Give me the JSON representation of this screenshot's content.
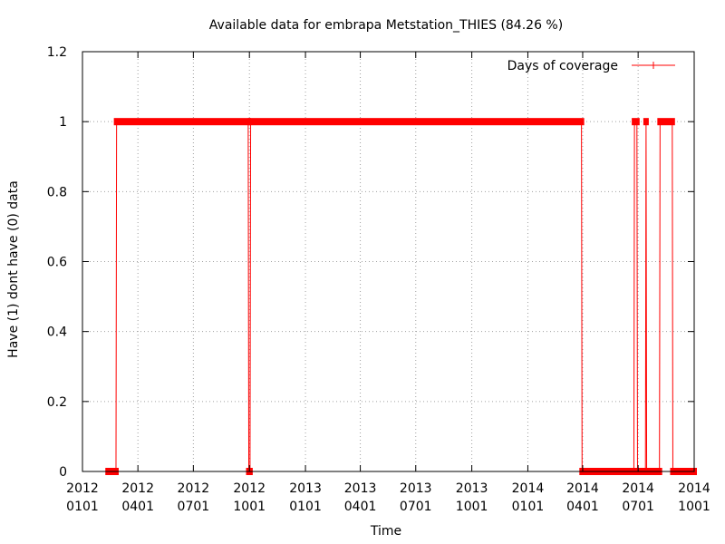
{
  "chart_data": {
    "type": "line",
    "title": "Available data for embrapa Metstation_THIES (84.26 %)",
    "xlabel": "Time",
    "ylabel": "Have (1) dont have (0) data",
    "xlim": [
      "2012-01-01",
      "2014-10-01"
    ],
    "ylim": [
      0,
      1.2
    ],
    "y_ticks": [
      "0",
      "0.2",
      "0.4",
      "0.6",
      "0.8",
      "1",
      "1.2"
    ],
    "y_tick_values": [
      0,
      0.2,
      0.4,
      0.6,
      0.8,
      1.0,
      1.2
    ],
    "x_ticks": [
      {
        "date": "2012-01-01",
        "line1": "2012",
        "line2": "0101"
      },
      {
        "date": "2012-04-01",
        "line1": "2012",
        "line2": "0401"
      },
      {
        "date": "2012-07-01",
        "line1": "2012",
        "line2": "0701"
      },
      {
        "date": "2012-10-01",
        "line1": "2012",
        "line2": "1001"
      },
      {
        "date": "2013-01-01",
        "line1": "2013",
        "line2": "0101"
      },
      {
        "date": "2013-04-01",
        "line1": "2013",
        "line2": "0401"
      },
      {
        "date": "2013-07-01",
        "line1": "2013",
        "line2": "0701"
      },
      {
        "date": "2013-10-01",
        "line1": "2013",
        "line2": "1001"
      },
      {
        "date": "2014-01-01",
        "line1": "2014",
        "line2": "0101"
      },
      {
        "date": "2014-04-01",
        "line1": "2014",
        "line2": "0401"
      },
      {
        "date": "2014-07-01",
        "line1": "2014",
        "line2": "0701"
      },
      {
        "date": "2014-10-01",
        "line1": "2014",
        "line2": "1001"
      }
    ],
    "grid": true,
    "legend_position": "top-right",
    "series": [
      {
        "name": "Days of coverage",
        "color": "#ff0000",
        "marker": "plus",
        "segments": [
          {
            "start": "2012-02-12",
            "end": "2012-02-25",
            "value": 0
          },
          {
            "start": "2012-02-26",
            "end": "2012-09-29",
            "value": 1
          },
          {
            "start": "2012-09-30",
            "end": "2012-10-02",
            "value": 0
          },
          {
            "start": "2012-10-03",
            "end": "2014-03-30",
            "value": 1
          },
          {
            "start": "2014-03-31",
            "end": "2014-06-24",
            "value": 0
          },
          {
            "start": "2014-06-25",
            "end": "2014-06-29",
            "value": 1
          },
          {
            "start": "2014-06-30",
            "end": "2014-07-13",
            "value": 0
          },
          {
            "start": "2014-07-14",
            "end": "2014-07-14",
            "value": 1
          },
          {
            "start": "2014-07-15",
            "end": "2014-08-05",
            "value": 0
          },
          {
            "start": "2014-08-06",
            "end": "2014-08-26",
            "value": 1
          },
          {
            "start": "2014-08-27",
            "end": "2014-09-03",
            "value": 0
          },
          {
            "start": "2014-09-04",
            "end": "2014-10-01",
            "value": 0
          }
        ]
      }
    ]
  }
}
